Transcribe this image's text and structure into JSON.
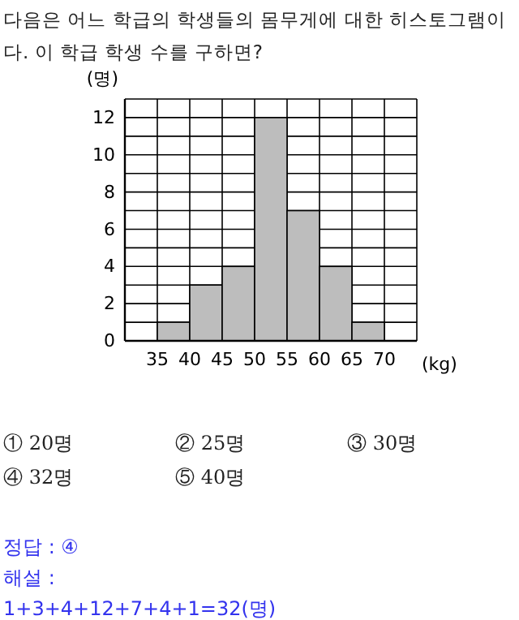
{
  "chart_data": {
    "type": "histogram",
    "title": "다음은 어느 학급의 학생들의 몸무게에 대한 히스토그램이다. 이 학급 학생 수를 구하면?",
    "bins": [
      35,
      40,
      45,
      50,
      55,
      60,
      65,
      70
    ],
    "values": [
      1,
      3,
      4,
      12,
      7,
      4,
      1
    ],
    "color": "#bdbdbd",
    "xlim": [
      30,
      75
    ],
    "xticks": [
      {
        "value": 30,
        "label": null
      },
      35,
      40,
      45,
      50,
      55,
      60,
      65,
      70,
      {
        "value": 75,
        "label": null
      }
    ],
    "ylim": [
      0,
      13
    ],
    "yticks": [
      0,
      {
        "value": 1,
        "label": null
      },
      2,
      {
        "value": 3,
        "label": null
      },
      4,
      {
        "value": 5,
        "label": null
      },
      6,
      {
        "value": 7,
        "label": null
      },
      8,
      {
        "value": 9,
        "label": null
      },
      10,
      {
        "value": 11,
        "label": null
      },
      12,
      {
        "value": 13,
        "label": null
      }
    ],
    "xlabel": "(kg)",
    "ylabel": "(명)",
    "grid": true,
    "annotations": [
      "① 20명",
      "② 25명",
      "③ 30명",
      "④ 32명",
      "⑤ 40명",
      "정답 : ④",
      "해설 :",
      "1+3+4+12+7+4+1=32(명)"
    ]
  }
}
